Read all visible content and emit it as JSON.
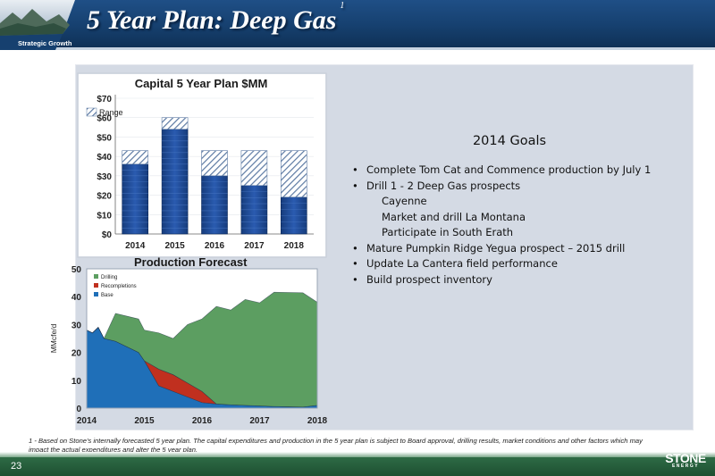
{
  "header": {
    "title": "5 Year Plan: Deep Gas",
    "title_sup": "1",
    "section": "Strategic Growth"
  },
  "goals": {
    "heading": "2014 Goals",
    "items": [
      {
        "text": "Complete Tom Cat and Commence production by July 1",
        "bullet": true
      },
      {
        "text": "Drill 1 - 2 Deep Gas prospects",
        "bullet": true
      },
      {
        "text": "Cayenne",
        "bullet": false
      },
      {
        "text": "Market and drill La Montana",
        "bullet": false
      },
      {
        "text": "Participate in South Erath",
        "bullet": false
      },
      {
        "text": "Mature Pumpkin Ridge Yegua prospect – 2015 drill",
        "bullet": true
      },
      {
        "text": "Update La Cantera field performance",
        "bullet": true
      },
      {
        "text": "Build prospect inventory",
        "bullet": true
      }
    ]
  },
  "chart_data": [
    {
      "type": "bar",
      "title": "Capital 5 Year Plan $MM",
      "categories": [
        "2014",
        "2015",
        "2016",
        "2017",
        "2018"
      ],
      "series": [
        {
          "name": "",
          "values": [
            36,
            54,
            30,
            25,
            19
          ]
        },
        {
          "name": "Range",
          "values": [
            7,
            6,
            13,
            18,
            24
          ]
        }
      ],
      "yticks": [
        "$0",
        "$10",
        "$20",
        "$30",
        "$40",
        "$50",
        "$60",
        "$70"
      ],
      "ylim": [
        0,
        70
      ],
      "legend": "top-left",
      "colors": {
        "base": "#1f4e9c",
        "range": "#8fa6c6"
      }
    },
    {
      "type": "area",
      "title": "Production Forecast",
      "ylabel": "MMcfe/d",
      "xticks": [
        "2014",
        "2015",
        "2016",
        "2017",
        "2018"
      ],
      "yticks": [
        "0",
        "10",
        "20",
        "30",
        "40",
        "50"
      ],
      "ylim": [
        0,
        50
      ],
      "x": [
        2014.0,
        2014.1,
        2014.2,
        2014.3,
        2014.5,
        2014.7,
        2014.9,
        2015.0,
        2015.25,
        2015.5,
        2015.75,
        2016.0,
        2016.25,
        2016.5,
        2016.75,
        2017.0,
        2017.25,
        2017.5,
        2017.75,
        2018.0
      ],
      "series": [
        {
          "name": "Base",
          "values": [
            28,
            27,
            29,
            25,
            24,
            22,
            20,
            17,
            8,
            6,
            4,
            2,
            1.5,
            1.2,
            1,
            0.8,
            0.6,
            0.5,
            0.4,
            1
          ]
        },
        {
          "name": "Recompletions",
          "values": [
            0,
            0,
            0,
            0,
            0,
            0,
            0,
            0,
            6,
            6,
            5,
            4,
            0,
            0,
            0,
            0,
            0,
            0,
            0,
            0
          ]
        },
        {
          "name": "Drilling",
          "values": [
            0,
            0,
            0,
            0,
            10,
            11,
            12,
            11,
            13,
            13,
            21,
            26,
            35,
            34,
            38,
            37,
            41,
            41,
            41,
            37
          ]
        }
      ],
      "legend": "top-left",
      "colors": {
        "Base": "#1f6fb8",
        "Recompletions": "#c0301f",
        "Drilling": "#5c9e61"
      }
    }
  ],
  "footnote": "1 - Based on Stone's internally forecasted 5 year plan. The capital expenditures and production in the 5 year plan is subject to Board approval, drilling results, market conditions and other factors which may impact the actual expenditures and alter the 5 year plan.",
  "footer": {
    "page_number": "23",
    "logo": "STONE",
    "logo_sub": "ENERGY"
  }
}
